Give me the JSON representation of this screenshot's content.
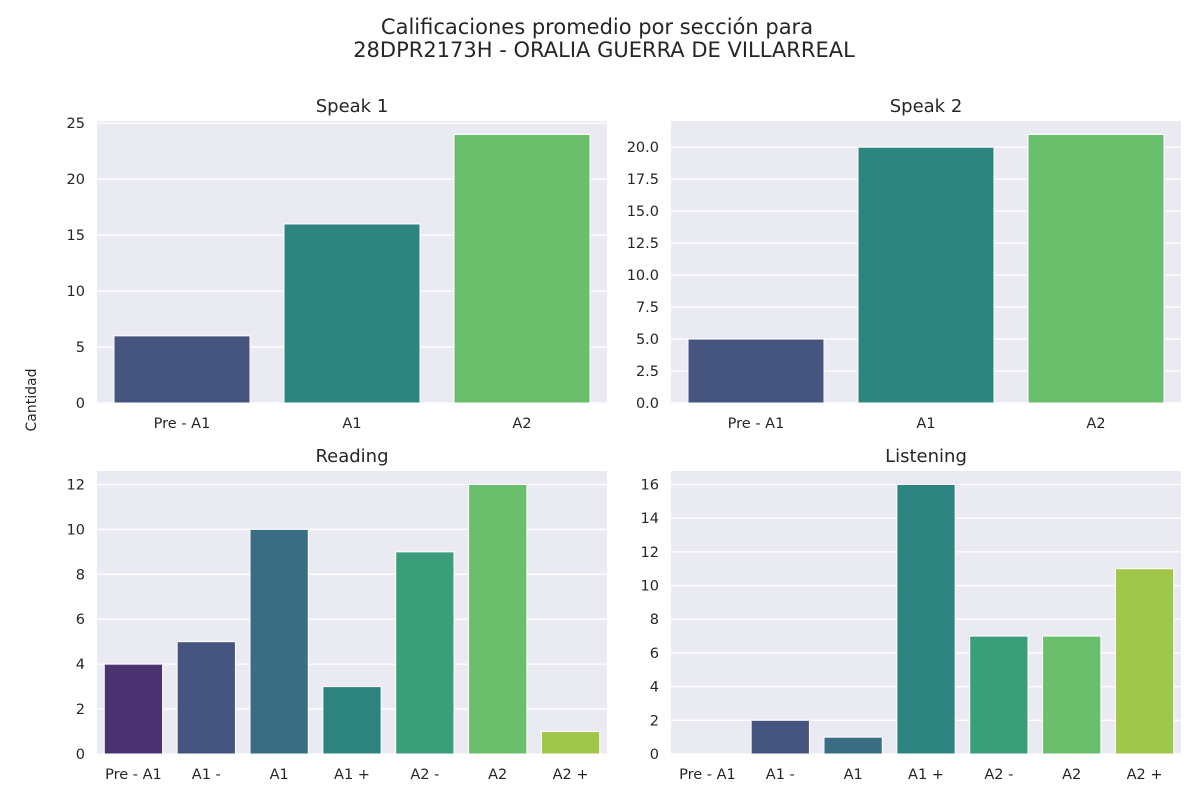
{
  "figure": {
    "title_line1": "Calificaciones promedio por sección para",
    "title_line2": "28DPR2173H - ORALIA GUERRA DE VILLARREAL",
    "shared_ylabel": "Cantidad",
    "plot_bg": "#eaeaf2"
  },
  "chart_data": [
    {
      "type": "bar",
      "title": "Speak 1",
      "xlabel": "",
      "ylabel": "",
      "categories": [
        "Pre - A1",
        "A1",
        "A2"
      ],
      "values": [
        6,
        16,
        24
      ],
      "colors": [
        "#46557f",
        "#2e857f",
        "#6bbf6c"
      ],
      "ylim": [
        0,
        25.2
      ],
      "yticks": [
        0,
        5,
        10,
        15,
        20,
        25
      ],
      "ytick_labels": [
        "0",
        "5",
        "10",
        "15",
        "20",
        "25"
      ],
      "grid": true
    },
    {
      "type": "bar",
      "title": "Speak 2",
      "xlabel": "",
      "ylabel": "",
      "categories": [
        "Pre - A1",
        "A1",
        "A2"
      ],
      "values": [
        5,
        20,
        21
      ],
      "colors": [
        "#46557f",
        "#2e857f",
        "#6bbf6c"
      ],
      "ylim": [
        0,
        22.05
      ],
      "yticks": [
        0,
        2.5,
        5,
        7.5,
        10,
        12.5,
        15,
        17.5,
        20
      ],
      "ytick_labels": [
        "0.0",
        "2.5",
        "5.0",
        "7.5",
        "10.0",
        "12.5",
        "15.0",
        "17.5",
        "20.0"
      ],
      "grid": true
    },
    {
      "type": "bar",
      "title": "Reading",
      "xlabel": "",
      "ylabel": "",
      "categories": [
        "Pre - A1",
        "A1 -",
        "A1",
        "A1 +",
        "A2 -",
        "A2",
        "A2 +"
      ],
      "values": [
        4,
        5,
        10,
        3,
        9,
        12,
        1
      ],
      "colors": [
        "#4b3371",
        "#46557f",
        "#396d83",
        "#2e857f",
        "#3a9e7b",
        "#6bbf6c",
        "#a1c74a"
      ],
      "ylim": [
        0,
        12.6
      ],
      "yticks": [
        0,
        2,
        4,
        6,
        8,
        10,
        12
      ],
      "ytick_labels": [
        "0",
        "2",
        "4",
        "6",
        "8",
        "10",
        "12"
      ],
      "grid": true
    },
    {
      "type": "bar",
      "title": "Listening",
      "xlabel": "",
      "ylabel": "",
      "categories": [
        "Pre - A1",
        "A1 -",
        "A1",
        "A1 +",
        "A2 -",
        "A2",
        "A2 +"
      ],
      "values": [
        0,
        2,
        1,
        16,
        7,
        7,
        11
      ],
      "colors": [
        "#4b3371",
        "#46557f",
        "#396d83",
        "#2e857f",
        "#3a9e7b",
        "#6bbf6c",
        "#a1c74a"
      ],
      "ylim": [
        0,
        16.8
      ],
      "yticks": [
        0,
        2,
        4,
        6,
        8,
        10,
        12,
        14,
        16
      ],
      "ytick_labels": [
        "0",
        "2",
        "4",
        "6",
        "8",
        "10",
        "12",
        "14",
        "16"
      ],
      "grid": true
    }
  ]
}
